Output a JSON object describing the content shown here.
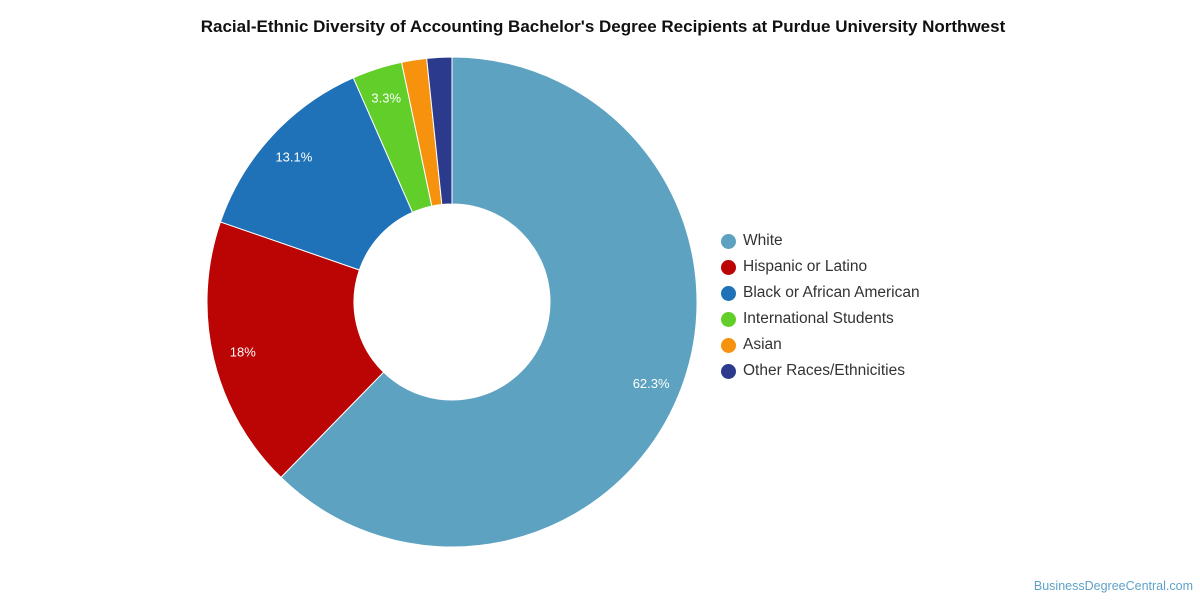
{
  "chart_data": {
    "type": "pie",
    "title": "Racial-Ethnic Diversity of Accounting Bachelor's Degree Recipients at Purdue University Northwest",
    "donut": true,
    "legend_position": "right",
    "slices": [
      {
        "label": "White",
        "value": 62.3,
        "data_label": "62.3%",
        "color": "#5da2c0"
      },
      {
        "label": "Hispanic or Latino",
        "value": 18.0,
        "data_label": "18%",
        "color": "#bb0404"
      },
      {
        "label": "Black or African American",
        "value": 13.1,
        "data_label": "13.1%",
        "color": "#1f72b8"
      },
      {
        "label": "International Students",
        "value": 3.3,
        "data_label": "3.3%",
        "color": "#62ce2a"
      },
      {
        "label": "Asian",
        "value": 1.65,
        "data_label": "",
        "color": "#f6920e"
      },
      {
        "label": "Other Races/Ethnicities",
        "value": 1.65,
        "data_label": "",
        "color": "#2c3a8e"
      }
    ]
  },
  "watermark": "BusinessDegreeCentral.com"
}
